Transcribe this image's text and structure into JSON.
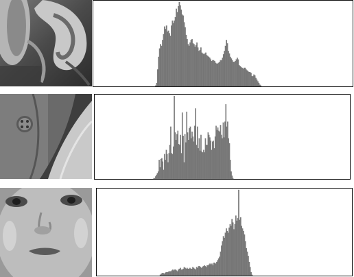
{
  "colors": {
    "bar_fill": "#7c7c7c",
    "bar_edge": "#595959",
    "frame": "#111111",
    "background": "#ffffff"
  },
  "rows": [
    {
      "thumbnail": "ear-closeup-photo",
      "histogram_values": [
        0,
        0,
        0,
        0,
        0,
        0,
        0,
        0,
        0,
        0,
        0,
        0,
        0,
        0,
        0,
        0,
        0,
        0,
        0,
        0,
        0,
        0,
        0,
        0,
        0,
        0,
        0,
        0,
        0,
        0,
        0,
        0,
        0,
        0,
        0,
        0,
        0,
        0,
        0,
        0,
        0,
        0,
        0,
        0,
        0,
        0,
        0,
        0,
        0,
        0,
        0,
        0,
        0,
        0,
        0,
        0,
        0,
        0,
        0,
        0,
        0,
        0,
        0,
        1,
        4,
        20,
        35,
        45,
        50,
        48,
        55,
        62,
        71,
        68,
        72,
        65,
        66,
        63,
        60,
        72,
        78,
        75,
        78,
        82,
        92,
        88,
        95,
        100,
        96,
        91,
        85,
        84,
        76,
        70,
        61,
        56,
        50,
        48,
        52,
        55,
        56,
        51,
        50,
        47,
        49,
        52,
        46,
        42,
        43,
        46,
        40,
        39,
        38,
        39,
        40,
        37,
        36,
        35,
        34,
        32,
        30,
        31,
        31,
        30,
        28,
        27,
        27,
        28,
        29,
        31,
        31,
        34,
        38,
        42,
        48,
        55,
        51,
        42,
        39,
        35,
        33,
        31,
        29,
        29,
        30,
        32,
        34,
        32,
        25,
        24,
        23,
        22,
        21,
        22,
        22,
        20,
        19,
        18,
        17,
        17,
        16,
        12,
        12,
        14,
        13,
        10,
        8,
        6,
        4,
        2,
        1,
        0,
        0,
        0,
        0,
        0,
        0,
        0,
        0,
        0,
        0,
        0,
        0,
        0,
        0,
        0,
        0,
        0,
        0,
        0,
        0,
        0,
        0,
        0,
        0,
        0,
        0,
        0,
        0,
        0,
        0,
        0,
        0,
        0,
        0,
        0,
        0,
        0,
        0,
        0,
        0,
        0,
        0,
        0,
        0,
        0,
        0,
        0,
        0,
        0,
        0,
        0,
        0,
        0,
        0,
        0,
        0,
        0,
        0,
        0,
        0,
        0,
        0,
        0,
        0,
        0,
        0,
        0,
        0,
        0,
        0,
        0,
        0,
        0,
        0,
        0,
        0,
        0,
        0,
        0,
        0,
        0,
        0,
        0,
        0,
        0,
        0,
        0,
        0,
        0,
        0,
        0,
        0,
        0
      ]
    },
    {
      "thumbnail": "shirt-button-photo",
      "histogram_values": [
        0,
        0,
        0,
        0,
        0,
        0,
        0,
        0,
        0,
        0,
        0,
        0,
        0,
        0,
        0,
        0,
        0,
        0,
        0,
        0,
        0,
        0,
        0,
        0,
        0,
        0,
        0,
        0,
        0,
        0,
        0,
        0,
        0,
        0,
        0,
        0,
        0,
        0,
        0,
        0,
        0,
        0,
        0,
        0,
        0,
        0,
        0,
        0,
        0,
        0,
        0,
        0,
        0,
        0,
        0,
        0,
        0,
        0,
        0,
        0,
        0,
        0,
        0,
        0,
        0,
        0,
        1,
        1,
        3,
        5,
        7,
        9,
        23,
        14,
        24,
        25,
        21,
        11,
        30,
        23,
        35,
        30,
        20,
        31,
        41,
        63,
        31,
        30,
        39,
        100,
        56,
        47,
        54,
        58,
        42,
        41,
        53,
        31,
        80,
        52,
        20,
        54,
        44,
        81,
        56,
        47,
        61,
        63,
        49,
        57,
        51,
        45,
        64,
        85,
        41,
        63,
        37,
        49,
        34,
        53,
        33,
        32,
        35,
        32,
        49,
        41,
        41,
        56,
        53,
        50,
        46,
        35,
        45,
        46,
        37,
        51,
        64,
        59,
        62,
        58,
        57,
        65,
        53,
        49,
        68,
        50,
        69,
        90,
        63,
        69,
        49,
        43,
        23,
        9,
        4,
        1,
        0,
        0,
        0,
        0,
        0,
        0,
        0,
        0,
        0,
        0,
        0,
        0,
        0,
        0,
        0,
        0,
        0,
        0,
        0,
        0,
        0,
        0,
        0,
        0,
        0,
        0,
        0,
        0,
        0,
        0,
        0,
        0,
        0,
        0,
        0,
        0,
        0,
        0,
        0,
        0,
        0,
        0,
        0,
        0,
        0,
        0,
        0,
        0,
        0,
        0,
        0,
        0,
        0,
        0,
        0,
        0,
        0,
        0,
        0,
        0,
        0,
        0,
        0,
        0,
        0,
        0,
        0,
        0,
        0,
        0,
        0,
        0,
        0,
        0,
        0,
        0,
        0,
        0,
        0,
        0,
        0,
        0,
        0,
        0,
        0,
        0,
        0,
        0,
        0,
        0,
        0,
        0,
        0,
        0,
        0,
        0,
        0,
        0,
        0,
        0,
        0,
        0,
        0,
        0,
        0,
        0,
        0,
        0,
        0,
        0,
        0,
        0,
        0,
        0,
        0,
        0,
        0,
        0,
        0,
        0,
        0,
        0,
        0,
        0,
        0,
        0,
        0,
        0,
        0,
        0,
        0
      ]
    },
    {
      "thumbnail": "baby-face-photo",
      "histogram_values": [
        0,
        0,
        0,
        0,
        0,
        0,
        0,
        0,
        0,
        0,
        0,
        0,
        0,
        0,
        0,
        0,
        0,
        0,
        0,
        0,
        0,
        0,
        0,
        0,
        0,
        0,
        0,
        0,
        0,
        0,
        0,
        0,
        0,
        0,
        0,
        0,
        0,
        0,
        0,
        0,
        0,
        0,
        0,
        0,
        0,
        0,
        0,
        0,
        0,
        0,
        0,
        0,
        0,
        0,
        0,
        0,
        0,
        0,
        0,
        0,
        0,
        0,
        0,
        0,
        0,
        0,
        1,
        2,
        3,
        3,
        2,
        3,
        4,
        4,
        4,
        5,
        5,
        5,
        6,
        7,
        6,
        7,
        7,
        6,
        5,
        7,
        8,
        9,
        7,
        7,
        8,
        10,
        9,
        8,
        9,
        8,
        8,
        9,
        8,
        8,
        10,
        9,
        8,
        7,
        10,
        9,
        11,
        11,
        10,
        9,
        10,
        11,
        12,
        11,
        10,
        12,
        12,
        13,
        14,
        13,
        14,
        12,
        15,
        15,
        14,
        16,
        18,
        20,
        22,
        28,
        35,
        40,
        46,
        44,
        50,
        55,
        52,
        50,
        56,
        60,
        58,
        66,
        62,
        54,
        60,
        70,
        64,
        67,
        100,
        65,
        68,
        58,
        55,
        52,
        48,
        40,
        32,
        28,
        23,
        16,
        10,
        4,
        1,
        0,
        0,
        0,
        0,
        0,
        0,
        0,
        0,
        0,
        0,
        0,
        0,
        0,
        0,
        0,
        0,
        0,
        0,
        0,
        0,
        0,
        0,
        0,
        0,
        0,
        0,
        0,
        0,
        0,
        0,
        0,
        0,
        0,
        0,
        0,
        0,
        0,
        0,
        0,
        0,
        0,
        0,
        0,
        0,
        0,
        0,
        0,
        0,
        0,
        0,
        0,
        0,
        0,
        0,
        0,
        0,
        0,
        0,
        0,
        0,
        0,
        0,
        0,
        0,
        0,
        0,
        0,
        0,
        0,
        0,
        0,
        0,
        0,
        0,
        0,
        0,
        0,
        0,
        0,
        0,
        0,
        0,
        0,
        0,
        0,
        0,
        0,
        0,
        0,
        0,
        0,
        0,
        0,
        0,
        0,
        0,
        0,
        0,
        0,
        0,
        0,
        0,
        0,
        0
      ]
    }
  ]
}
